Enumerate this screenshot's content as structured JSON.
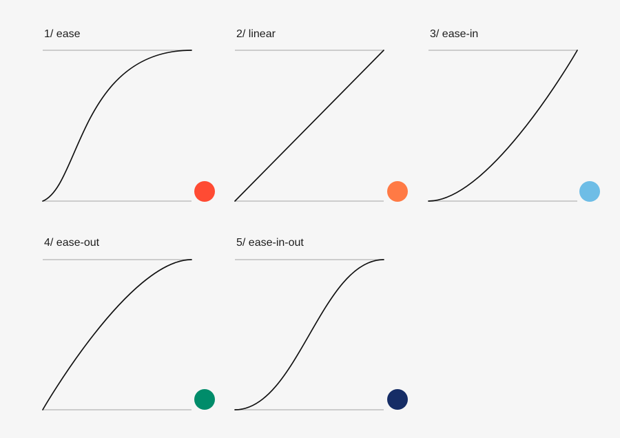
{
  "panels": [
    {
      "title": "1/ ease",
      "timing_function": "ease",
      "control_points": [
        0.25,
        0.1,
        0.25,
        1.0
      ],
      "dot_color": "#ff4b33"
    },
    {
      "title": "2/ linear",
      "timing_function": "linear",
      "control_points": [
        0.0,
        0.0,
        1.0,
        1.0
      ],
      "dot_color": "#ff7a45"
    },
    {
      "title": "3/ ease-in",
      "timing_function": "ease-in",
      "control_points": [
        0.42,
        0.0,
        1.0,
        1.0
      ],
      "dot_color": "#6ebde6"
    },
    {
      "title": "4/ ease-out",
      "timing_function": "ease-out",
      "control_points": [
        0.0,
        0.0,
        0.58,
        1.0
      ],
      "dot_color": "#008c6a"
    },
    {
      "title": "5/ ease-in-out",
      "timing_function": "ease-in-out",
      "control_points": [
        0.42,
        0.0,
        0.58,
        1.0
      ],
      "dot_color": "#162d66"
    }
  ],
  "colors": {
    "background": "#f6f6f6",
    "guide_line": "#bdbdbd",
    "curve": "#111111",
    "text": "#1c1c1c"
  }
}
